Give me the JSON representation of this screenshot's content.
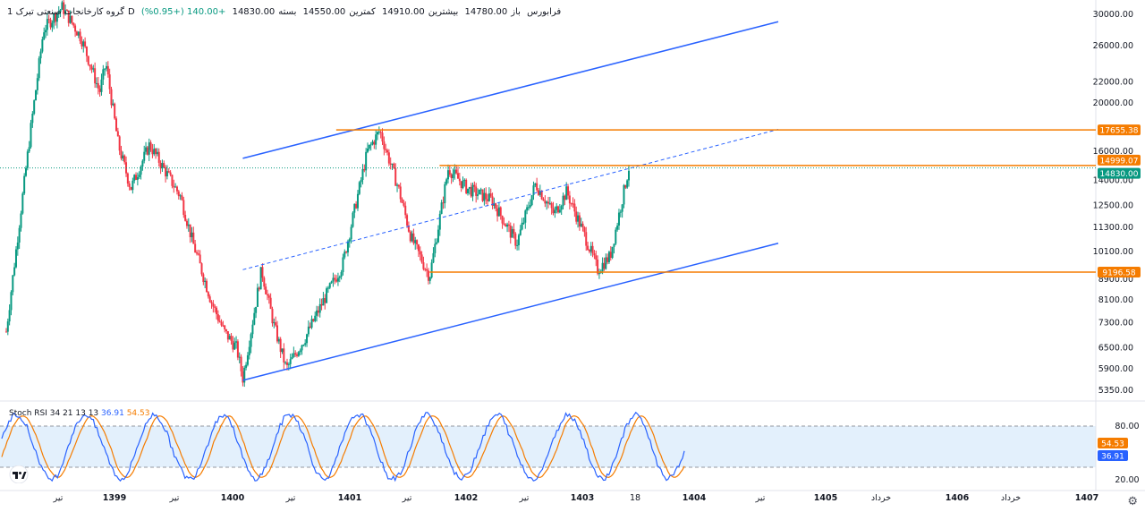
{
  "header": {
    "name": "گروه کارخانجات صنعتی تبرک",
    "interval": "1D",
    "exchange": "فرابورس",
    "open_label": "باز",
    "open": "14780.00",
    "high_label": "بیشترین",
    "high": "14910.00",
    "low_label": "کمترین",
    "low": "14550.00",
    "close_label": "بسته",
    "close": "14830.00",
    "change": "+140.00 (+0.95%)"
  },
  "price_axis": {
    "ticks": [
      "30000.00",
      "26000.00",
      "22000.00",
      "20000.00",
      "16000.00",
      "14000.00",
      "12500.00",
      "11300.00",
      "10100.00",
      "8900.00",
      "8100.00",
      "7300.00",
      "6500.00",
      "5900.00",
      "5350.00"
    ],
    "log_scale": true
  },
  "price_labels": {
    "level_high": "17655.38",
    "level_mid": "14999.07",
    "last_price": "14830.00",
    "level_low": "9196.58"
  },
  "rsi": {
    "title": "Stoch RSI",
    "params": "34 21 13 13",
    "k_value": "36.91",
    "d_value": "54.53",
    "axis_ticks": [
      "80.00",
      "20.00"
    ]
  },
  "time_axis": {
    "labels": [
      "تیر",
      "1399",
      "تیر",
      "1400",
      "تیر",
      "1401",
      "تیر",
      "1402",
      "تیر",
      "1403",
      "18",
      "1404",
      "تیر",
      "1405",
      "خرداد",
      "1406",
      "خرداد",
      "1407"
    ]
  },
  "colors": {
    "up": "#089981",
    "down": "#f23645",
    "channel": "#2962ff",
    "level": "#f57c00",
    "k_line": "#2962ff",
    "d_line": "#f57c00"
  },
  "icons": {
    "settings": "gear-icon",
    "logo": "tradingview-logo"
  },
  "chart_data": {
    "type": "candlestick",
    "y_scale": "log",
    "ylim": [
      5000,
      32000
    ],
    "last_close": 14830,
    "horizontal_levels": [
      17655.38,
      14999.07,
      9196.58
    ],
    "channel": {
      "lower": [
        [
          1400.2,
          5600
        ],
        [
          1404.5,
          10500
        ]
      ],
      "upper": [
        [
          1400.2,
          15500
        ],
        [
          1404.5,
          29000
        ]
      ],
      "mid": [
        [
          1400.2,
          9300
        ],
        [
          1404.5,
          17700
        ]
      ]
    },
    "series_path": [
      [
        1398.3,
        7000
      ],
      [
        1398.5,
        18000
      ],
      [
        1398.6,
        28000
      ],
      [
        1398.75,
        31000
      ],
      [
        1398.9,
        27000
      ],
      [
        1399.05,
        21000
      ],
      [
        1399.1,
        24000
      ],
      [
        1399.2,
        16500
      ],
      [
        1399.3,
        13500
      ],
      [
        1399.45,
        16500
      ],
      [
        1399.55,
        15000
      ],
      [
        1399.7,
        13000
      ],
      [
        1399.8,
        10500
      ],
      [
        1399.95,
        8000
      ],
      [
        1400.05,
        7000
      ],
      [
        1400.15,
        6500
      ],
      [
        1400.2,
        5650
      ],
      [
        1400.35,
        9300
      ],
      [
        1400.45,
        7200
      ],
      [
        1400.55,
        5900
      ],
      [
        1400.7,
        6800
      ],
      [
        1400.85,
        8100
      ],
      [
        1401.0,
        9500
      ],
      [
        1401.2,
        16000
      ],
      [
        1401.3,
        17600
      ],
      [
        1401.45,
        13500
      ],
      [
        1401.55,
        10800
      ],
      [
        1401.7,
        9000
      ],
      [
        1401.85,
        14800
      ],
      [
        1402.0,
        13500
      ],
      [
        1402.2,
        12800
      ],
      [
        1402.4,
        10500
      ],
      [
        1402.55,
        13800
      ],
      [
        1402.7,
        12000
      ],
      [
        1402.8,
        13300
      ],
      [
        1402.95,
        10800
      ],
      [
        1403.05,
        9300
      ],
      [
        1403.15,
        9900
      ],
      [
        1403.3,
        14830
      ]
    ],
    "stoch_rsi": {
      "ylim": [
        0,
        100
      ],
      "bands": [
        20,
        80
      ],
      "k_last": 36.91,
      "d_last": 54.53
    }
  }
}
